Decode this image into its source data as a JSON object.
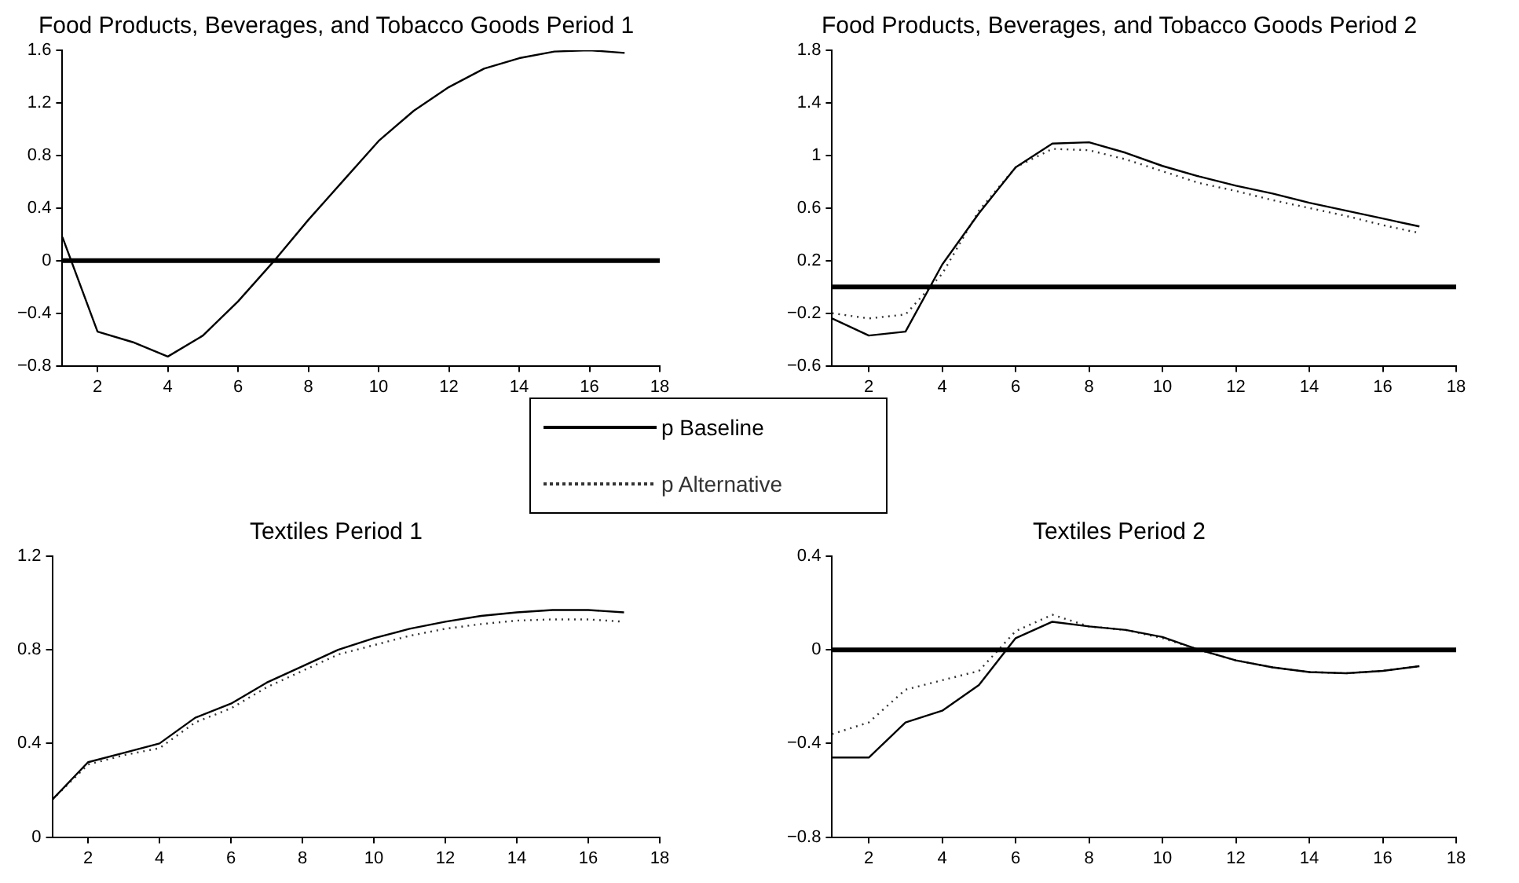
{
  "chart_data": [
    {
      "type": "line",
      "title": "Food Products, Beverages, and Tobacco Goods Period 1",
      "x": [
        1,
        2,
        3,
        4,
        5,
        6,
        7,
        8,
        9,
        10,
        11,
        12,
        13,
        14,
        15,
        16,
        17
      ],
      "xlim": [
        1,
        18
      ],
      "xticks": [
        2,
        4,
        6,
        8,
        10,
        12,
        14,
        16,
        18
      ],
      "ylim": [
        -0.8,
        1.6
      ],
      "yticks": [
        -0.8,
        -0.4,
        0,
        0.4,
        0.8,
        1.2,
        1.6
      ],
      "grid": false,
      "legend": false,
      "marker": "none",
      "series": [
        {
          "color": "#000000",
          "line_style": "solid",
          "values": [
            0.18,
            -0.54,
            -0.62,
            -0.73,
            -0.57,
            -0.31,
            -0.01,
            0.31,
            0.61,
            0.91,
            1.14,
            1.32,
            1.46,
            1.54,
            1.59,
            1.6,
            1.58
          ]
        }
      ],
      "ref_lines": [
        {
          "axis": "y",
          "value": 0,
          "color": "#000000"
        }
      ]
    },
    {
      "type": "line",
      "title": "Food Products, Beverages, and Tobacco Goods Period 2",
      "x": [
        1,
        2,
        3,
        4,
        5,
        6,
        7,
        8,
        9,
        10,
        11,
        12,
        13,
        14,
        15,
        16,
        17
      ],
      "xlim": [
        1,
        18
      ],
      "xticks": [
        2,
        4,
        6,
        8,
        10,
        12,
        14,
        16,
        18
      ],
      "ylim": [
        -0.6,
        1.8
      ],
      "yticks": [
        -0.6,
        -0.2,
        0.2,
        0.6,
        1,
        1.4,
        1.8
      ],
      "grid": false,
      "legend": "bottom left",
      "marker": "none",
      "series": [
        {
          "name": "p Baseline",
          "color": "#000000",
          "line_style": "solid",
          "values": [
            -0.24,
            -0.37,
            -0.34,
            0.17,
            0.56,
            0.91,
            1.09,
            1.1,
            1.02,
            0.92,
            0.84,
            0.77,
            0.71,
            0.64,
            0.58,
            0.52,
            0.46
          ]
        },
        {
          "name": "p Alternative",
          "color": "#333333",
          "line_style": "dotted",
          "values": [
            -0.2,
            -0.24,
            -0.21,
            0.1,
            0.58,
            0.91,
            1.05,
            1.04,
            0.97,
            0.88,
            0.79,
            0.73,
            0.66,
            0.6,
            0.54,
            0.47,
            0.41
          ]
        }
      ],
      "ref_lines": [
        {
          "axis": "y",
          "value": 0,
          "color": "#000000"
        }
      ]
    },
    {
      "type": "line",
      "title": "Textiles Period 1",
      "x": [
        1,
        2,
        3,
        4,
        5,
        6,
        7,
        8,
        9,
        10,
        11,
        12,
        13,
        14,
        15,
        16,
        17
      ],
      "xlim": [
        1,
        18
      ],
      "xticks": [
        2,
        4,
        6,
        8,
        10,
        12,
        14,
        16,
        18
      ],
      "ylim": [
        0,
        1.2
      ],
      "yticks": [
        0,
        0.4,
        0.8,
        1.2
      ],
      "grid": false,
      "legend": false,
      "marker": "none",
      "series": [
        {
          "color": "#000000",
          "line_style": "solid",
          "values": [
            0.16,
            0.32,
            0.36,
            0.4,
            0.51,
            0.57,
            0.66,
            0.73,
            0.8,
            0.85,
            0.89,
            0.92,
            0.945,
            0.96,
            0.97,
            0.97,
            0.96
          ]
        },
        {
          "color": "#333333",
          "line_style": "dotted",
          "values": [
            0.16,
            0.31,
            0.35,
            0.38,
            0.49,
            0.55,
            0.64,
            0.71,
            0.78,
            0.82,
            0.86,
            0.89,
            0.91,
            0.925,
            0.93,
            0.93,
            0.92
          ]
        }
      ]
    },
    {
      "type": "line",
      "title": "Textiles Period 2",
      "x": [
        1,
        2,
        3,
        4,
        5,
        6,
        7,
        8,
        9,
        10,
        11,
        12,
        13,
        14,
        15,
        16,
        17
      ],
      "xlim": [
        1,
        18
      ],
      "xticks": [
        2,
        4,
        6,
        8,
        10,
        12,
        14,
        16,
        18
      ],
      "ylim": [
        -0.8,
        0.4
      ],
      "yticks": [
        -0.8,
        -0.4,
        0,
        0.4
      ],
      "grid": false,
      "legend": false,
      "marker": "none",
      "series": [
        {
          "color": "#000000",
          "line_style": "solid",
          "values": [
            -0.46,
            -0.46,
            -0.31,
            -0.26,
            -0.15,
            0.05,
            0.12,
            0.1,
            0.085,
            0.055,
            0,
            -0.045,
            -0.075,
            -0.095,
            -0.1,
            -0.09,
            -0.07
          ]
        },
        {
          "color": "#333333",
          "line_style": "dotted",
          "values": [
            -0.36,
            -0.31,
            -0.17,
            -0.13,
            -0.09,
            0.08,
            0.15,
            0.1,
            0.085,
            0.05,
            0,
            -0.045,
            -0.075,
            -0.095,
            -0.1,
            -0.09,
            -0.07
          ]
        }
      ],
      "ref_lines": [
        {
          "axis": "y",
          "value": 0,
          "color": "#000000"
        }
      ]
    }
  ]
}
